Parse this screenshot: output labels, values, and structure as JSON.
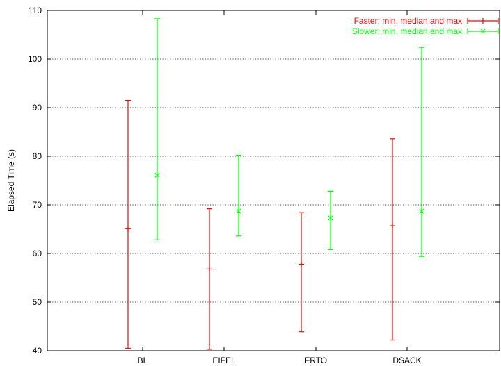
{
  "chart_data": {
    "type": "errorbar",
    "categories": [
      "BL",
      "EIFEL",
      "FRTO",
      "DSACK"
    ],
    "ylabel": "Elapsed Time (s)",
    "xlabel": "",
    "ylim": [
      40,
      110
    ],
    "yticks": [
      40,
      50,
      60,
      70,
      80,
      90,
      100,
      110
    ],
    "grid": true,
    "legend_position": "top-right",
    "series": [
      {
        "name": "Faster: min, median and max",
        "color": "#ff0000",
        "marker": "+",
        "min": [
          40.5,
          40.3,
          43.9,
          42.2
        ],
        "median": [
          65.1,
          56.8,
          57.8,
          65.7
        ],
        "max": [
          91.5,
          69.2,
          68.4,
          83.6
        ]
      },
      {
        "name": "Slower: min, median and max",
        "color": "#00ff00",
        "marker": "x",
        "min": [
          62.8,
          63.6,
          60.8,
          59.4
        ],
        "median": [
          76.1,
          68.7,
          67.3,
          68.7
        ],
        "max": [
          108.3,
          80.2,
          72.8,
          102.4
        ]
      }
    ]
  }
}
